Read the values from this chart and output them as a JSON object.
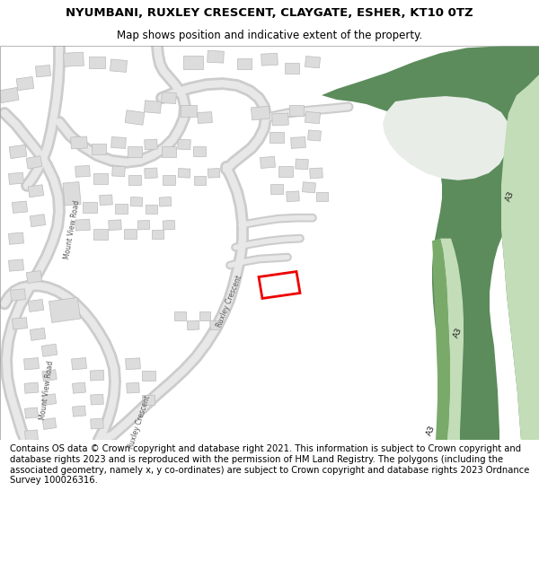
{
  "title_line1": "NYUMBANI, RUXLEY CRESCENT, CLAYGATE, ESHER, KT10 0TZ",
  "title_line2": "Map shows position and indicative extent of the property.",
  "footer_text": "Contains OS data © Crown copyright and database right 2021. This information is subject to Crown copyright and database rights 2023 and is reproduced with the permission of HM Land Registry. The polygons (including the associated geometry, namely x, y co-ordinates) are subject to Crown copyright and database rights 2023 Ordnance Survey 100026316.",
  "bg_color": "#ffffff",
  "map_bg": "#f7f7f7",
  "road_fill": "#e8e8e8",
  "road_edge": "#cccccc",
  "bld_fill": "#dcdcdc",
  "bld_edge": "#bbbbbb",
  "green_dark": "#5c8c5c",
  "green_mid": "#7aaa6a",
  "green_light": "#c2ddb8",
  "green_pale": "#d8ead8",
  "plot_color": "#ee0000",
  "title_fs": 9.5,
  "subtitle_fs": 8.5,
  "footer_fs": 7.2,
  "label_fs": 5.5,
  "a3_fs": 6.5
}
